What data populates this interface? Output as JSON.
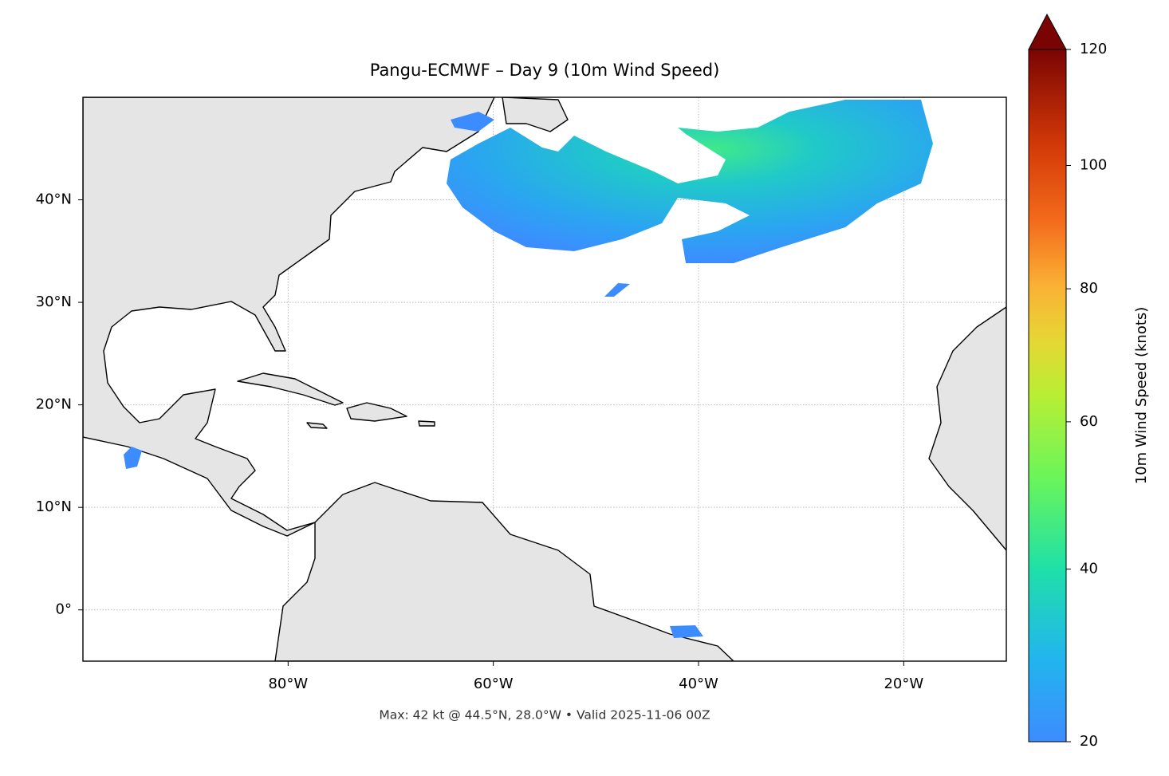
{
  "chart_data": {
    "type": "map",
    "title": "Pangu-ECMWF – Day 9 (10m Wind Speed)",
    "annotation": "Max: 42 kt @ 44.5°N, 28.0°W • Valid 2025-11-06 00Z",
    "xlim": [
      -100,
      -10
    ],
    "ylim": [
      -5,
      50
    ],
    "xticks": [
      {
        "value": -80,
        "label": "80°W"
      },
      {
        "value": -60,
        "label": "60°W"
      },
      {
        "value": -40,
        "label": "40°W"
      },
      {
        "value": -20,
        "label": "20°W"
      }
    ],
    "yticks": [
      {
        "value": 0,
        "label": "0°"
      },
      {
        "value": 10,
        "label": "10°N"
      },
      {
        "value": 20,
        "label": "20°N"
      },
      {
        "value": 30,
        "label": "30°N"
      },
      {
        "value": 40,
        "label": "40°N"
      }
    ],
    "grid": true,
    "colorbar": {
      "label": "10m Wind Speed (knots)",
      "lim": [
        20,
        120
      ],
      "ticks": [
        20,
        40,
        60,
        80,
        100,
        120
      ],
      "norm": "power",
      "gamma": 0.7,
      "extend": "max"
    }
  }
}
